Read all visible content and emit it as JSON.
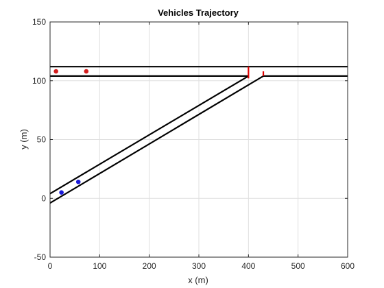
{
  "chart_data": {
    "type": "line",
    "title": "Vehicles Trajectory",
    "xlabel": "x (m)",
    "ylabel": "y (m)",
    "xlim": [
      0,
      600
    ],
    "ylim": [
      -50,
      150
    ],
    "xticks": [
      0,
      100,
      200,
      300,
      400,
      500,
      600
    ],
    "yticks": [
      -50,
      0,
      50,
      100,
      150
    ],
    "grid": true,
    "colors": {
      "road": "#000000",
      "marker": "#e00000",
      "vehicle_main": "#d41f1f",
      "vehicle_ramp": "#1a1ad9",
      "grid": "#dfdfdf",
      "axis": "#262626"
    },
    "road_lines": [
      {
        "x": [
          0,
          600
        ],
        "y": [
          112,
          112
        ]
      },
      {
        "x": [
          0,
          400
        ],
        "y": [
          104,
          104
        ]
      },
      {
        "x": [
          430,
          600
        ],
        "y": [
          104,
          104
        ]
      },
      {
        "x": [
          0,
          400
        ],
        "y": [
          4,
          104
        ]
      },
      {
        "x": [
          0,
          430
        ],
        "y": [
          -4,
          104
        ]
      }
    ],
    "merge_markers": [
      {
        "x": [
          400,
          400
        ],
        "y": [
          102,
          112
        ]
      },
      {
        "x": [
          430,
          430
        ],
        "y": [
          104,
          108
        ]
      }
    ],
    "vehicles": [
      {
        "group": "main",
        "x": 12,
        "y": 108
      },
      {
        "group": "main",
        "x": 73,
        "y": 108
      },
      {
        "group": "ramp",
        "x": 23,
        "y": 5
      },
      {
        "group": "ramp",
        "x": 57,
        "y": 14
      }
    ]
  }
}
